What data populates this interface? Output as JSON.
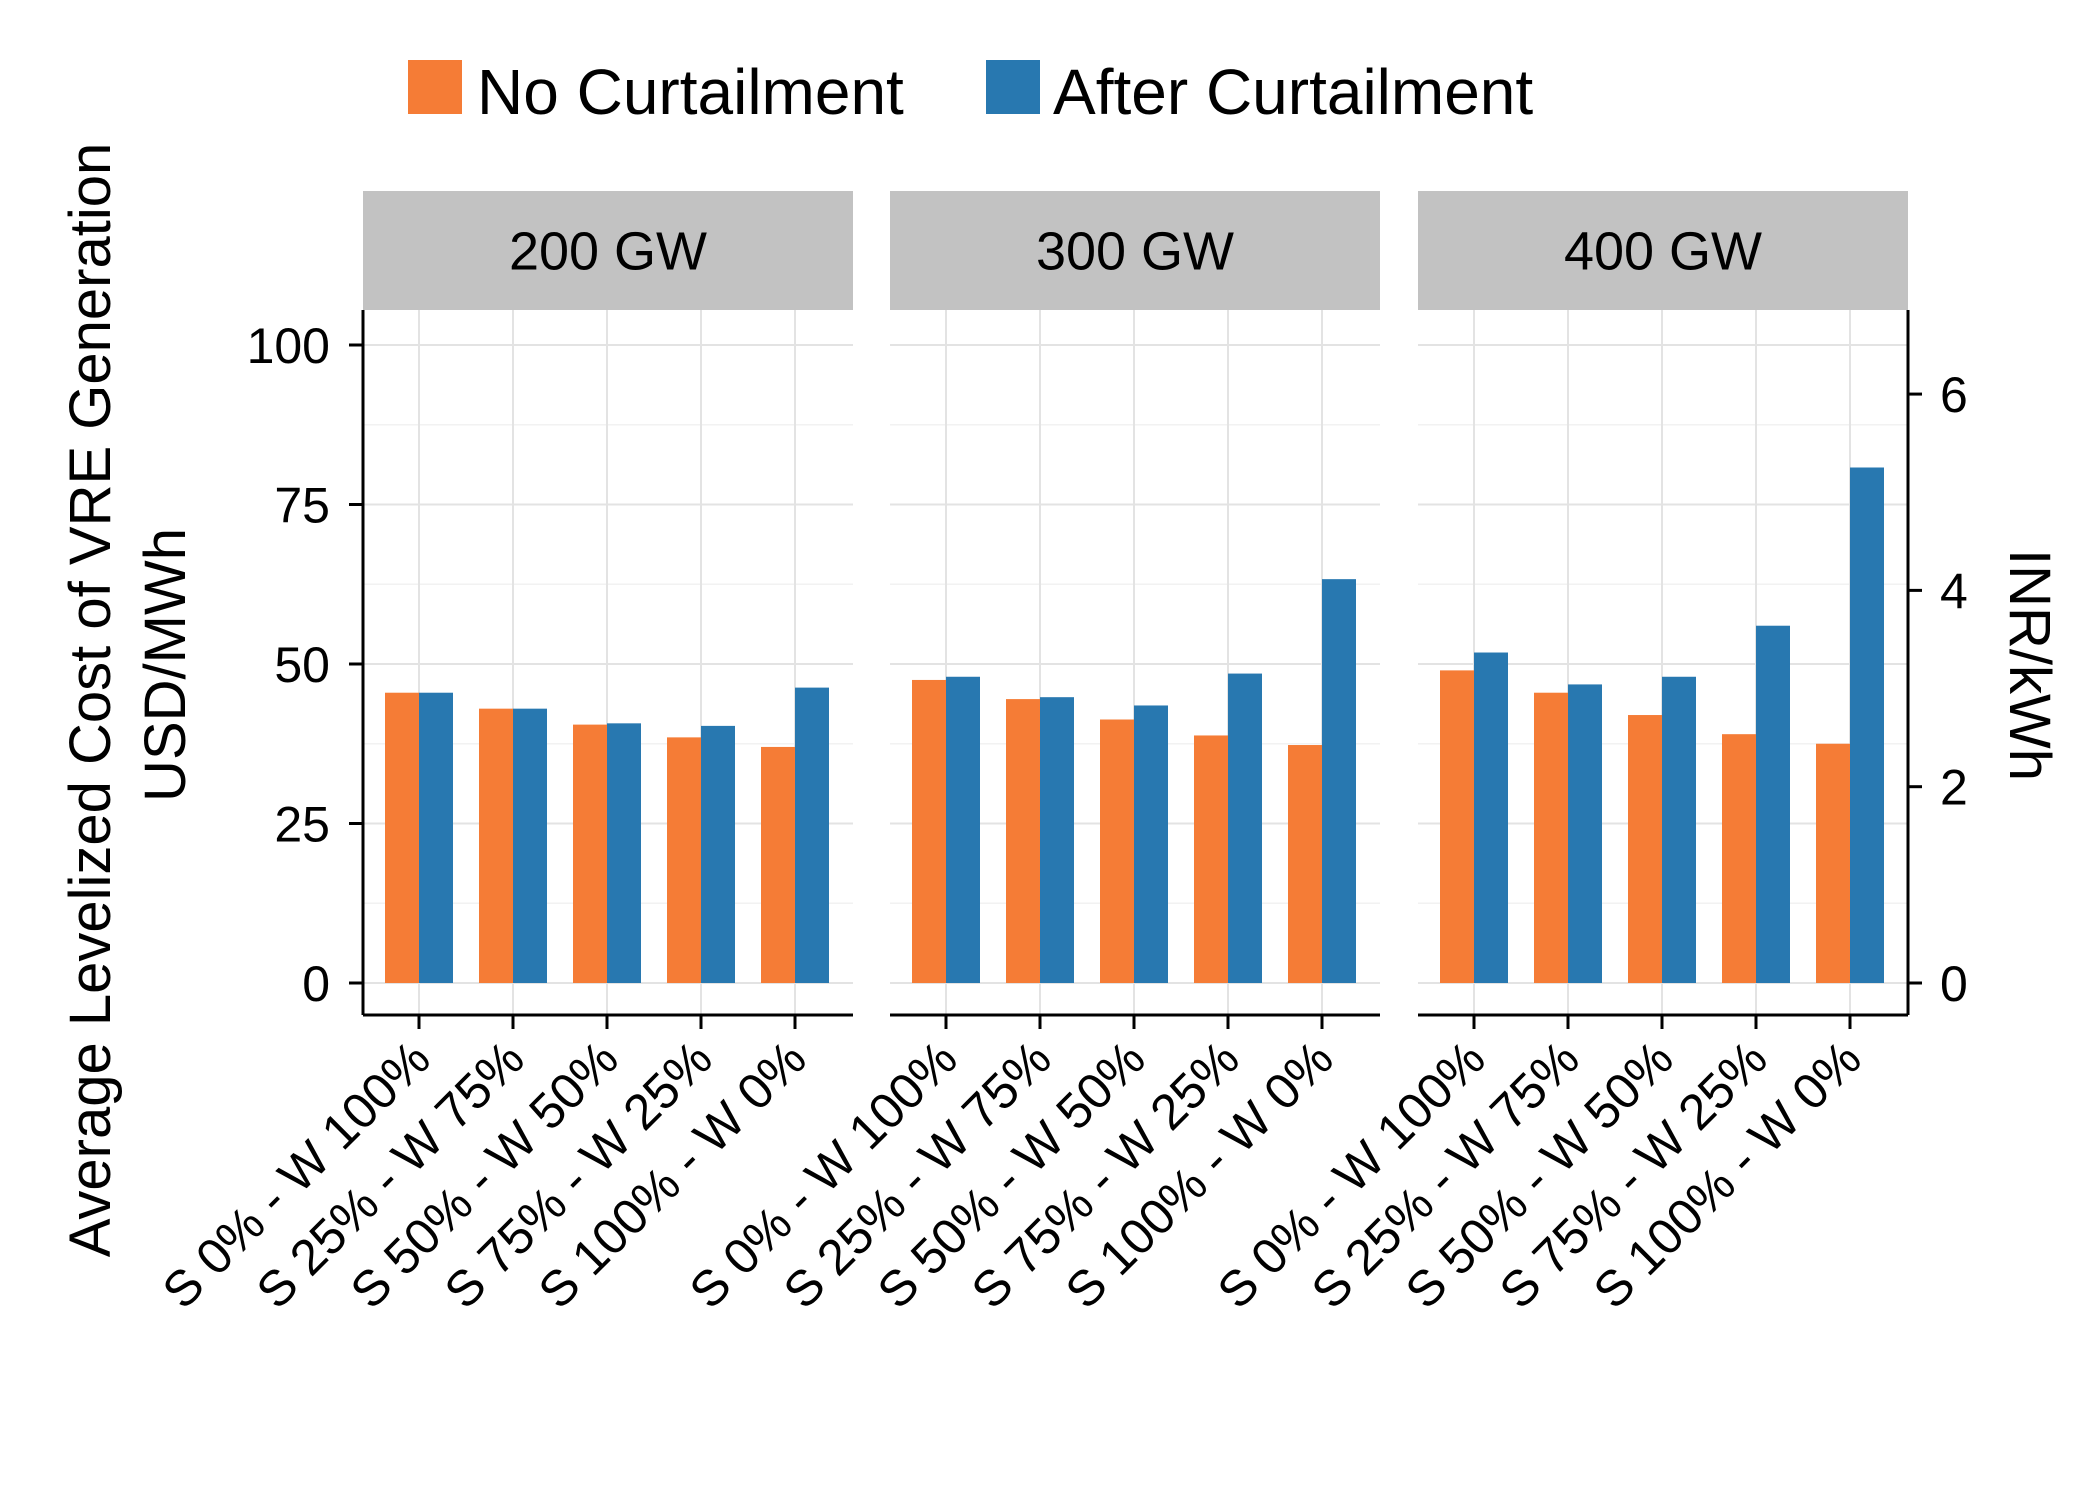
{
  "chart_data": {
    "type": "bar",
    "y_label_line1": "Average Levelized Cost of VRE Generation",
    "y_label_line2": "USD/MWh",
    "y2_label": "INR/kWh",
    "ylim": [
      0,
      100
    ],
    "yticks": [
      0,
      25,
      50,
      75,
      100
    ],
    "y2ticks": [
      0,
      2,
      4,
      6
    ],
    "usd_to_inr_factor": 0.065,
    "grid": true,
    "legend_position": "top",
    "colors": {
      "No Curtailment": "#F57C36",
      "After Curtailment": "#2878B0"
    },
    "legend": [
      "No Curtailment",
      "After Curtailment"
    ],
    "categories": [
      "S 0% - W 100%",
      "S 25% - W 75%",
      "S 50% - W 50%",
      "S 75% - W 25%",
      "S 100% - W 0%"
    ],
    "panels": [
      {
        "title": "200 GW",
        "series": [
          {
            "name": "No Curtailment",
            "values": [
              45.5,
              43.0,
              40.5,
              38.5,
              37.0
            ]
          },
          {
            "name": "After Curtailment",
            "values": [
              45.5,
              43.0,
              40.7,
              40.3,
              46.3
            ]
          }
        ]
      },
      {
        "title": "300 GW",
        "series": [
          {
            "name": "No Curtailment",
            "values": [
              47.5,
              44.5,
              41.3,
              38.8,
              37.3
            ]
          },
          {
            "name": "After Curtailment",
            "values": [
              48.0,
              44.8,
              43.5,
              48.5,
              63.3
            ]
          }
        ]
      },
      {
        "title": "400 GW",
        "series": [
          {
            "name": "No Curtailment",
            "values": [
              49.0,
              45.5,
              42.0,
              39.0,
              37.5
            ]
          },
          {
            "name": "After Curtailment",
            "values": [
              51.8,
              46.8,
              48.0,
              56.0,
              80.8
            ]
          }
        ]
      }
    ]
  }
}
